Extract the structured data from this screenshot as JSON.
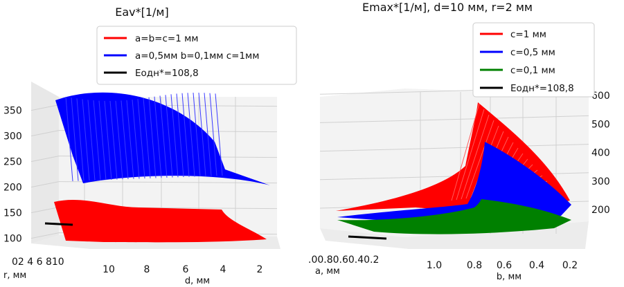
{
  "chart_data": [
    {
      "type": "surface3d",
      "title": "Eav*[1/м]",
      "xlabel": "d, мм",
      "ylabel": "r, мм",
      "x_ticks": [
        "10",
        "8",
        "6",
        "4",
        "2"
      ],
      "y_ticks": [
        "0",
        "2",
        "4",
        "6",
        "8",
        "10"
      ],
      "y_ticks_text": "02 4 6 810",
      "z_ticks": [
        "100",
        "150",
        "200",
        "250",
        "300",
        "350"
      ],
      "zlim": [
        90,
        390
      ],
      "legend_position": "top",
      "series": [
        {
          "name": "a=b=c=1 мм",
          "color": "#ff0000",
          "z_range": [
            120,
            165
          ]
        },
        {
          "name": "a=0,5мм b=0,1мм c=1мм",
          "color": "#0000ff",
          "z_range": [
            190,
            380
          ]
        },
        {
          "name": "Еодн*=108,8",
          "color": "#000000",
          "z_value": 108.8
        }
      ]
    },
    {
      "type": "surface3d",
      "title": "Emax*[1/м], d=10 мм, r=2 мм",
      "xlabel": "a, мм",
      "ylabel": "b, мм",
      "x_ticks": [
        ".0",
        "0.8",
        "0.6",
        "0.4",
        "0.2"
      ],
      "x_ticks_text": ".00.80.60.40.2",
      "y_ticks": [
        "1.0",
        "0.8",
        "0.6",
        "0.4",
        "0.2"
      ],
      "z_ticks": [
        "200",
        "300",
        "400",
        "500",
        "600"
      ],
      "zlim": [
        110,
        620
      ],
      "legend_position": "top-right",
      "series": [
        {
          "name": "c=1 мм",
          "color": "#ff0000",
          "z_range": [
            150,
            610
          ]
        },
        {
          "name": "c=0,5 мм",
          "color": "#0000ff",
          "z_range": [
            150,
            440
          ]
        },
        {
          "name": "c=0,1 мм",
          "color": "#008000",
          "z_range": [
            140,
            230
          ]
        },
        {
          "name": "Еодн*=108,8",
          "color": "#000000",
          "z_value": 108.8
        }
      ]
    }
  ]
}
